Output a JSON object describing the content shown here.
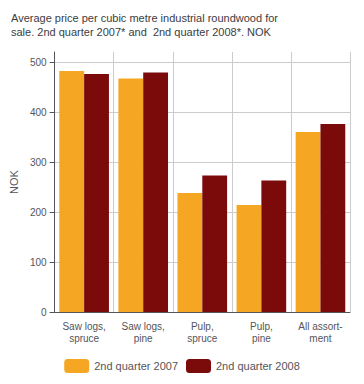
{
  "chart_data": {
    "type": "bar",
    "title": "Average price per cubic metre industrial roundwood for\nsale. 2nd quarter 2007* and  2nd quarter 2008*. NOK",
    "ylabel": "NOK",
    "categories": [
      "Saw logs,\nspruce",
      "Saw logs,\npine",
      "Pulp,\nspruce",
      "Pulp,\npine",
      "All assort-\nment"
    ],
    "series": [
      {
        "name": "2nd quarter 2007",
        "color": "#F5A623",
        "values": [
          482,
          467,
          238,
          214,
          360
        ]
      },
      {
        "name": "2nd quarter 2008",
        "color": "#7B0A0A",
        "values": [
          476,
          479,
          273,
          263,
          376
        ]
      }
    ],
    "ylim": [
      0,
      520
    ],
    "yticks": [
      0,
      100,
      200,
      300,
      400,
      500
    ],
    "grid": true,
    "legend": "bottom"
  }
}
